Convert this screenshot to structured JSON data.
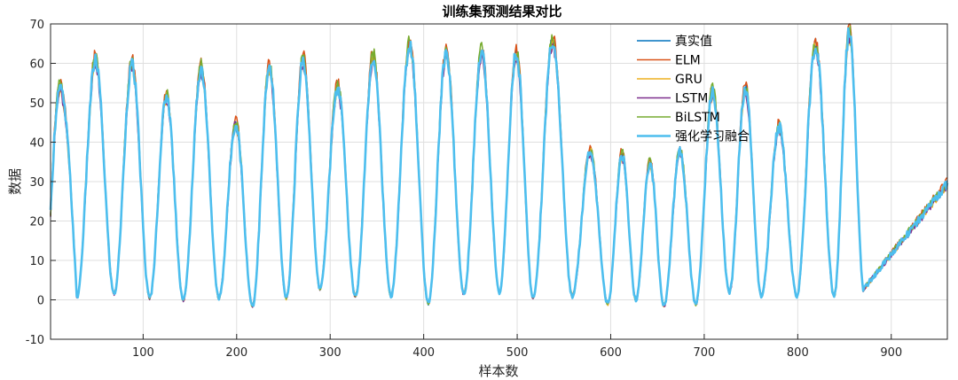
{
  "chart_data": {
    "type": "line",
    "title": "训练集预测结果对比",
    "xlabel": "样本数",
    "ylabel": "数据",
    "xlim": [
      1,
      960
    ],
    "ylim": [
      -10,
      70
    ],
    "xticks": [
      100,
      200,
      300,
      400,
      500,
      600,
      700,
      800,
      900
    ],
    "yticks": [
      -10,
      0,
      10,
      20,
      30,
      40,
      50,
      60,
      70
    ],
    "grid": true,
    "legend_position": "top-right",
    "series": [
      {
        "name": "真实值",
        "color": "#0072BD",
        "offset": 0.0
      },
      {
        "name": "ELM",
        "color": "#D95319",
        "offset": 0.9
      },
      {
        "name": "GRU",
        "color": "#EDB120",
        "offset": -0.8
      },
      {
        "name": "LSTM",
        "color": "#7E2F8E",
        "offset": -1.2
      },
      {
        "name": "BiLSTM",
        "color": "#77AC30",
        "offset": 0.5
      },
      {
        "name": "强化学习融合",
        "color": "#4DBEEE",
        "offset": -0.4
      }
    ],
    "cycles": [
      {
        "start": 1,
        "min": 22,
        "peak": 54,
        "end_min": 0.5,
        "len": 28
      },
      {
        "peak": 61,
        "min": 1.5,
        "len": 40
      },
      {
        "peak": 60,
        "min": 0.5,
        "len": 38
      },
      {
        "peak": 52,
        "min": 0,
        "len": 36
      },
      {
        "peak": 59,
        "min": 0.5,
        "len": 38
      },
      {
        "peak": 45,
        "min": -1.5,
        "len": 36
      },
      {
        "peak": 59,
        "min": 0.5,
        "len": 36
      },
      {
        "peak": 61,
        "min": 3,
        "len": 36
      },
      {
        "peak": 54,
        "min": 1,
        "len": 38
      },
      {
        "peak": 62,
        "min": 1,
        "len": 38
      },
      {
        "peak": 65,
        "min": -1,
        "len": 40
      },
      {
        "peak": 63,
        "min": 1.5,
        "len": 38
      },
      {
        "peak": 63,
        "min": 2,
        "len": 38
      },
      {
        "peak": 63,
        "min": 0.5,
        "len": 36
      },
      {
        "peak": 66,
        "min": 1,
        "len": 42
      },
      {
        "peak": 38,
        "min": -1,
        "len": 38
      },
      {
        "peak": 37,
        "min": 0,
        "len": 30
      },
      {
        "peak": 35,
        "min": -1.5,
        "len": 30
      },
      {
        "peak": 38,
        "min": -1,
        "len": 34
      },
      {
        "peak": 53,
        "min": 2,
        "len": 36
      },
      {
        "peak": 54,
        "min": 1,
        "len": 34
      },
      {
        "peak": 44,
        "min": 1,
        "len": 38
      },
      {
        "peak": 65,
        "min": 1,
        "len": 40
      },
      {
        "peak": 68,
        "min": 2,
        "len": 32
      }
    ]
  }
}
